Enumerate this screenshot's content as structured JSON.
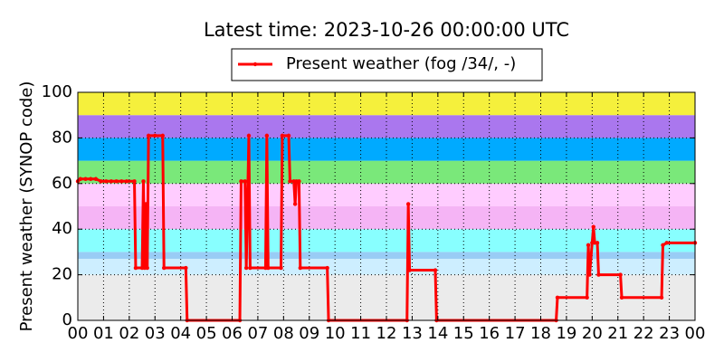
{
  "chart_data": {
    "type": "line",
    "title": "Latest time: 2023-10-26 00:00:00 UTC",
    "ylabel": "Present weather (SYNOP code)",
    "xlim": [
      0,
      24
    ],
    "ylim": [
      0,
      100
    ],
    "yticks": [
      0,
      20,
      40,
      60,
      80,
      100
    ],
    "xticks": [
      {
        "value": 0,
        "label": "00"
      },
      {
        "value": 1,
        "label": "01"
      },
      {
        "value": 2,
        "label": "02"
      },
      {
        "value": 3,
        "label": "03"
      },
      {
        "value": 4,
        "label": "04"
      },
      {
        "value": 5,
        "label": "05"
      },
      {
        "value": 6,
        "label": "06"
      },
      {
        "value": 7,
        "label": "07"
      },
      {
        "value": 8,
        "label": "08"
      },
      {
        "value": 9,
        "label": "09"
      },
      {
        "value": 10,
        "label": "10"
      },
      {
        "value": 11,
        "label": "11"
      },
      {
        "value": 12,
        "label": "12"
      },
      {
        "value": 13,
        "label": "13"
      },
      {
        "value": 14,
        "label": "14"
      },
      {
        "value": 15,
        "label": "15"
      },
      {
        "value": 16,
        "label": "16"
      },
      {
        "value": 17,
        "label": "17"
      },
      {
        "value": 18,
        "label": "18"
      },
      {
        "value": 19,
        "label": "19"
      },
      {
        "value": 20,
        "label": "20"
      },
      {
        "value": 21,
        "label": "21"
      },
      {
        "value": 22,
        "label": "22"
      },
      {
        "value": 23,
        "label": "23"
      },
      {
        "value": 24,
        "label": "00"
      }
    ],
    "grid": true,
    "legend": "top",
    "bands": [
      {
        "from": 0,
        "to": 20,
        "color": "#ebebeb"
      },
      {
        "from": 20,
        "to": 27,
        "color": "#cdeeff"
      },
      {
        "from": 27,
        "to": 30,
        "color": "#99ccf5"
      },
      {
        "from": 30,
        "to": 40,
        "color": "#88ffff"
      },
      {
        "from": 40,
        "to": 50,
        "color": "#f5b4f5"
      },
      {
        "from": 50,
        "to": 60,
        "color": "#ffccff"
      },
      {
        "from": 60,
        "to": 70,
        "color": "#7ae87a"
      },
      {
        "from": 70,
        "to": 80,
        "color": "#00aaff"
      },
      {
        "from": 80,
        "to": 90,
        "color": "#aa77ee"
      },
      {
        "from": 90,
        "to": 100,
        "color": "#f5f03c"
      }
    ],
    "series": [
      {
        "name": "Present weather (fog /34/, -)",
        "color": "#ff0000",
        "x": [
          0,
          0.1,
          0.3,
          0.5,
          0.7,
          0.9,
          1.1,
          1.3,
          1.5,
          1.7,
          1.9,
          2.2,
          2.25,
          2.5,
          2.55,
          2.6,
          2.65,
          2.7,
          2.75,
          3.0,
          3.3,
          3.35,
          4.2,
          4.25,
          6.3,
          6.35,
          6.5,
          6.55,
          6.65,
          6.7,
          7.3,
          7.35,
          7.4,
          7.9,
          7.95,
          8.2,
          8.25,
          8.4,
          8.45,
          8.5,
          8.6,
          8.65,
          9.7,
          9.75,
          12.8,
          12.85,
          12.9,
          13.9,
          13.95,
          18.6,
          18.65,
          19.8,
          19.85,
          19.9,
          20.0,
          20.05,
          20.1,
          20.2,
          20.25,
          21.1,
          21.15,
          22.7,
          22.75,
          22.9,
          24
        ],
        "values": [
          61,
          62,
          62,
          62,
          62,
          61,
          61,
          61,
          61,
          61,
          61,
          61,
          23,
          23,
          61,
          23,
          51,
          23,
          81,
          81,
          81,
          23,
          23,
          0,
          0,
          61,
          61,
          23,
          81,
          23,
          23,
          81,
          23,
          23,
          81,
          81,
          61,
          61,
          51,
          61,
          61,
          23,
          23,
          0,
          0,
          51,
          22,
          22,
          0,
          0,
          10,
          10,
          33,
          20,
          34,
          41,
          34,
          34,
          20,
          20,
          10,
          10,
          33,
          34,
          34
        ]
      }
    ]
  }
}
